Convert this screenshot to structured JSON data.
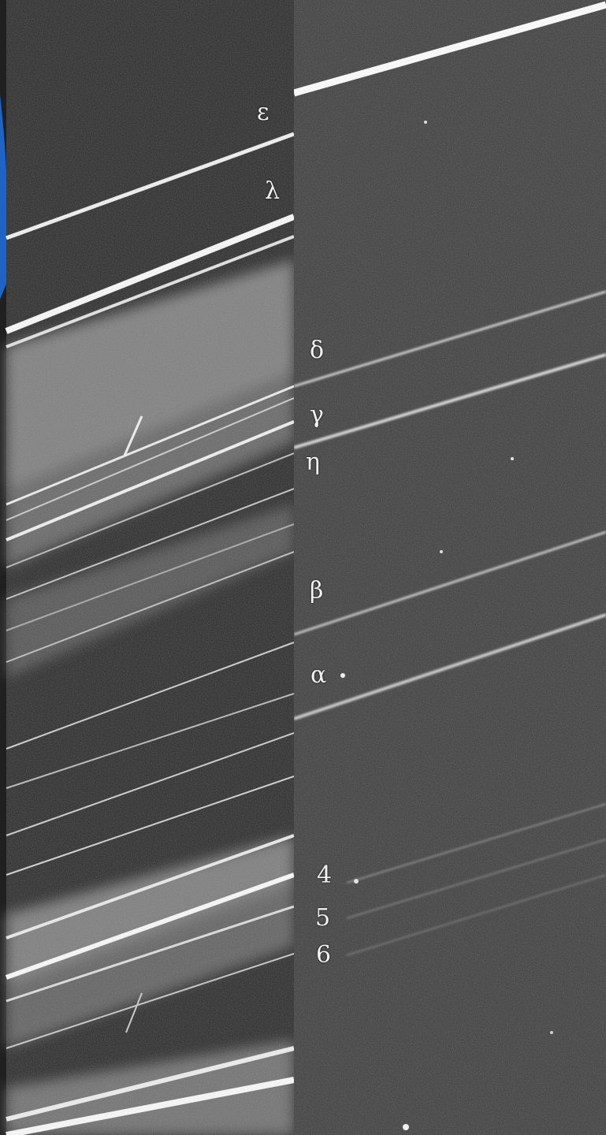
{
  "image": {
    "description_visible": "mosaic of planetary ring photographs",
    "panels": [
      "left-forward-scatter-panel",
      "right-back-scatter-panel"
    ],
    "accent_colors": {
      "planet_limb": "#1f63c4",
      "background": "#1a1a1a",
      "rings": "#f4f4f4"
    }
  },
  "labels": {
    "epsilon": "ε",
    "lambda": "λ",
    "delta": "δ",
    "gamma": "γ",
    "eta": "η",
    "beta": "β",
    "alpha": "α",
    "ring4": "4",
    "ring5": "5",
    "ring6": "6"
  }
}
